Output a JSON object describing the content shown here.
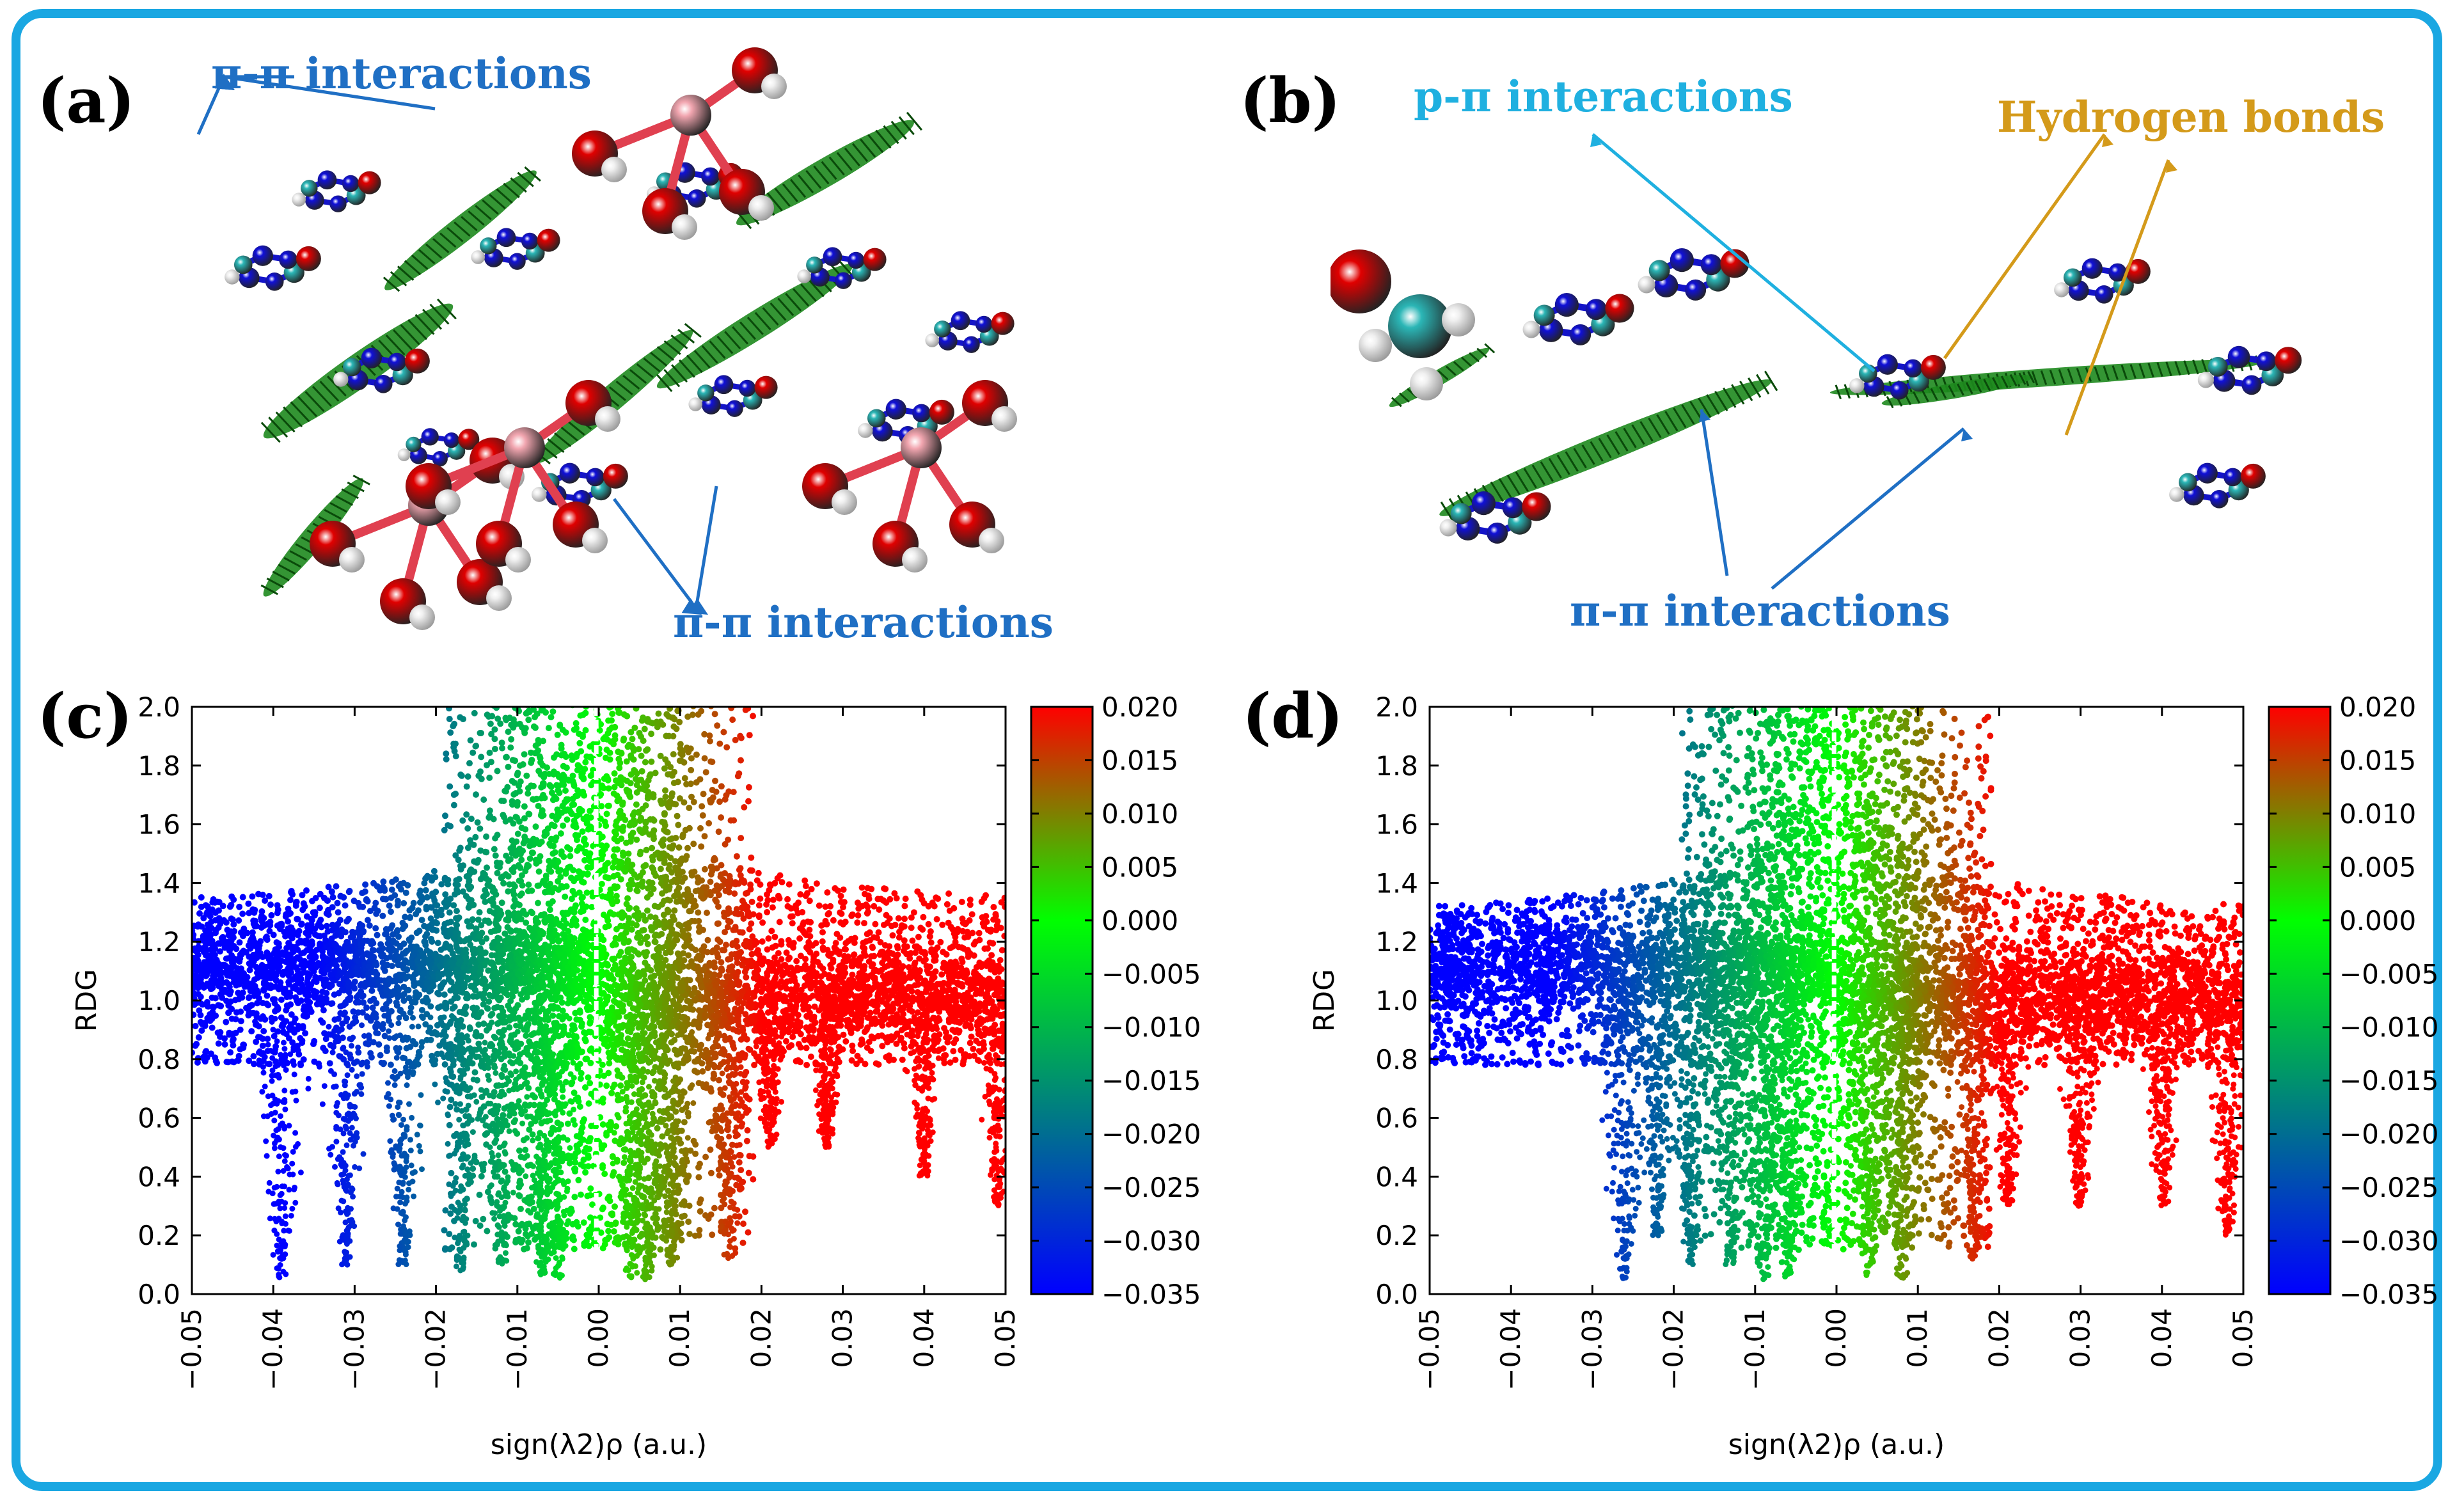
{
  "panels": {
    "a": {
      "label": "(a)",
      "annotations": [
        "π-π interactions",
        "π-π interactions"
      ]
    },
    "b": {
      "label": "(b)",
      "annotations": [
        "p-π interactions",
        "Hydrogen bonds",
        "π-π interactions"
      ]
    },
    "c": {
      "label": "(c)"
    },
    "d": {
      "label": "(d)"
    }
  },
  "colors": {
    "frame": "#1aa7e2",
    "pi_pi": "#1f6fc4",
    "p_pi": "#1fb0e0",
    "hbond": "#d49a1a",
    "atom_O": "#e00000",
    "atom_N": "#1010d8",
    "atom_C": "#2bb6b6",
    "atom_H": "#f0f0f0",
    "atom_metal": "#f2a6b0",
    "isosurface": "#1e8a1e"
  },
  "icons": [
    "molecule-render",
    "isosurface-render"
  ],
  "chart_data": [
    {
      "type": "scatter",
      "panel": "c",
      "xlabel": "sign(λ2)ρ (a.u.)",
      "ylabel": "RDG",
      "xlim": [
        -0.05,
        0.05
      ],
      "ylim": [
        0.0,
        2.0
      ],
      "xticks": [
        "−0.05",
        "−0.04",
        "−0.03",
        "−0.02",
        "−0.01",
        "0.00",
        "0.01",
        "0.02",
        "0.03",
        "0.04",
        "0.05"
      ],
      "yticks": [
        "0.0",
        "0.2",
        "0.4",
        "0.6",
        "0.8",
        "1.0",
        "1.2",
        "1.4",
        "1.6",
        "1.8",
        "2.0"
      ],
      "colorbar": {
        "range": [
          -0.035,
          0.02
        ],
        "ticks": [
          "0.020",
          "0.015",
          "0.010",
          "0.005",
          "0.000",
          "−0.005",
          "−0.010",
          "−0.015",
          "−0.020",
          "−0.025",
          "−0.030",
          "−0.035"
        ],
        "colors": [
          "#0000ff",
          "#00ff00",
          "#ff0000"
        ]
      },
      "spikes": [
        {
          "x": -0.039,
          "ymin": 0.05
        },
        {
          "x": -0.031,
          "ymin": 0.1
        },
        {
          "x": -0.024,
          "ymin": 0.1
        },
        {
          "x": -0.017,
          "ymin": 0.08
        },
        {
          "x": -0.012,
          "ymin": 0.1
        },
        {
          "x": -0.007,
          "ymin": 0.05
        },
        {
          "x": -0.005,
          "ymin": 0.05
        },
        {
          "x": 0.004,
          "ymin": 0.05
        },
        {
          "x": 0.006,
          "ymin": 0.05
        },
        {
          "x": 0.009,
          "ymin": 0.1
        },
        {
          "x": 0.016,
          "ymin": 0.12
        },
        {
          "x": 0.021,
          "ymin": 0.5
        },
        {
          "x": 0.028,
          "ymin": 0.5
        },
        {
          "x": 0.04,
          "ymin": 0.4
        },
        {
          "x": 0.049,
          "ymin": 0.3
        }
      ]
    },
    {
      "type": "scatter",
      "panel": "d",
      "xlabel": "sign(λ2)ρ (a.u.)",
      "ylabel": "RDG",
      "xlim": [
        -0.05,
        0.05
      ],
      "ylim": [
        0.0,
        2.0
      ],
      "xticks": [
        "−0.05",
        "−0.04",
        "−0.03",
        "−0.02",
        "−0.01",
        "0.00",
        "0.01",
        "0.02",
        "0.03",
        "0.04",
        "0.05"
      ],
      "yticks": [
        "0.0",
        "0.2",
        "0.4",
        "0.6",
        "0.8",
        "1.0",
        "1.2",
        "1.4",
        "1.6",
        "1.8",
        "2.0"
      ],
      "colorbar": {
        "range": [
          -0.035,
          0.02
        ],
        "ticks": [
          "0.020",
          "0.015",
          "0.010",
          "0.005",
          "0.000",
          "−0.005",
          "−0.010",
          "−0.015",
          "−0.020",
          "−0.025",
          "−0.030",
          "−0.035"
        ],
        "colors": [
          "#0000ff",
          "#00ff00",
          "#ff0000"
        ]
      },
      "spikes": [
        {
          "x": -0.026,
          "ymin": 0.05
        },
        {
          "x": -0.022,
          "ymin": 0.2
        },
        {
          "x": -0.018,
          "ymin": 0.1
        },
        {
          "x": -0.013,
          "ymin": 0.1
        },
        {
          "x": -0.009,
          "ymin": 0.05
        },
        {
          "x": -0.006,
          "ymin": 0.05
        },
        {
          "x": 0.004,
          "ymin": 0.05
        },
        {
          "x": 0.008,
          "ymin": 0.05
        },
        {
          "x": 0.017,
          "ymin": 0.12
        },
        {
          "x": 0.021,
          "ymin": 0.3
        },
        {
          "x": 0.03,
          "ymin": 0.3
        },
        {
          "x": 0.04,
          "ymin": 0.3
        },
        {
          "x": 0.048,
          "ymin": 0.2
        }
      ]
    }
  ]
}
